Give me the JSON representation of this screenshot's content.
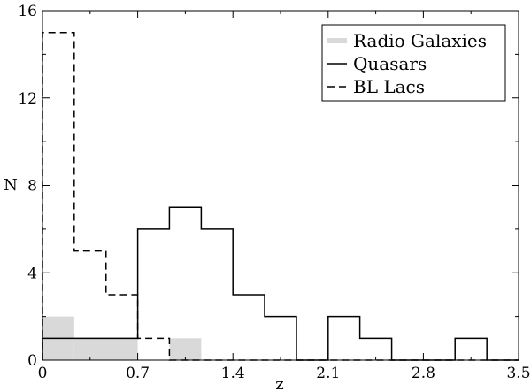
{
  "chart_data": {
    "type": "histogram",
    "xlabel": "z",
    "ylabel": "N",
    "xlim": [
      0,
      3.5
    ],
    "ylim": [
      0,
      16
    ],
    "xticks": [
      "0",
      "0.7",
      "1.4",
      "2.1",
      "2.8",
      "3.5"
    ],
    "xtick_values": [
      0,
      0.7,
      1.4,
      2.1,
      2.8,
      3.5
    ],
    "yticks": [
      "0",
      "4",
      "8",
      "12",
      "16"
    ],
    "ytick_values": [
      0,
      4,
      8,
      12,
      16
    ],
    "grid": false,
    "legend_position": "top-right",
    "series": [
      {
        "name": "Radio Galaxies",
        "style": "filled",
        "color": "#d9d9d9",
        "bins": [
          {
            "x0": 0.0,
            "x1": 0.233,
            "count": 2
          },
          {
            "x0": 0.233,
            "x1": 0.7,
            "count": 1
          },
          {
            "x0": 0.7,
            "x1": 0.933,
            "count": 0
          },
          {
            "x0": 0.933,
            "x1": 1.167,
            "count": 1
          }
        ]
      },
      {
        "name": "Quasars",
        "style": "solid",
        "color": "#000000",
        "bins": [
          {
            "x0": 0.0,
            "x1": 0.7,
            "count": 1
          },
          {
            "x0": 0.7,
            "x1": 0.933,
            "count": 6
          },
          {
            "x0": 0.933,
            "x1": 1.167,
            "count": 7
          },
          {
            "x0": 1.167,
            "x1": 1.4,
            "count": 6
          },
          {
            "x0": 1.4,
            "x1": 1.633,
            "count": 3
          },
          {
            "x0": 1.633,
            "x1": 1.867,
            "count": 2
          },
          {
            "x0": 1.867,
            "x1": 2.1,
            "count": 0
          },
          {
            "x0": 2.1,
            "x1": 2.333,
            "count": 2
          },
          {
            "x0": 2.333,
            "x1": 2.567,
            "count": 1
          },
          {
            "x0": 2.567,
            "x1": 2.8,
            "count": 0
          },
          {
            "x0": 2.8,
            "x1": 3.033,
            "count": 0
          },
          {
            "x0": 3.033,
            "x1": 3.267,
            "count": 1
          },
          {
            "x0": 3.267,
            "x1": 3.5,
            "count": 0
          }
        ]
      },
      {
        "name": "BL Lacs",
        "style": "dashed",
        "color": "#000000",
        "bins": [
          {
            "x0": 0.0,
            "x1": 0.233,
            "count": 15
          },
          {
            "x0": 0.233,
            "x1": 0.467,
            "count": 5
          },
          {
            "x0": 0.467,
            "x1": 0.7,
            "count": 3
          },
          {
            "x0": 0.7,
            "x1": 0.933,
            "count": 1
          },
          {
            "x0": 0.933,
            "x1": 3.5,
            "count": 0
          }
        ]
      }
    ]
  }
}
